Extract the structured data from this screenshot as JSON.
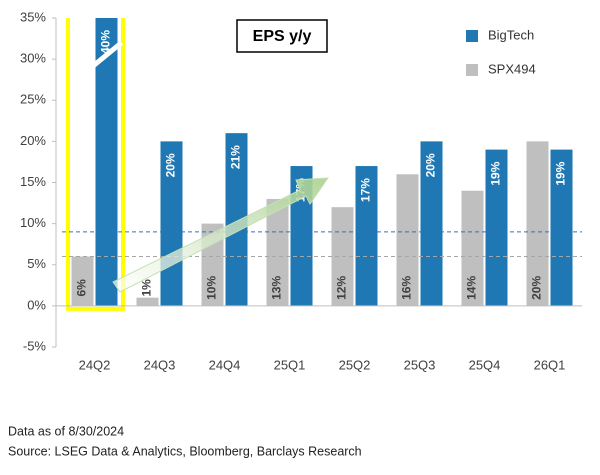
{
  "chart_data": {
    "type": "bar",
    "title": "EPS y/y",
    "categories": [
      "24Q2",
      "24Q3",
      "24Q4",
      "25Q1",
      "25Q2",
      "25Q3",
      "25Q4",
      "26Q1"
    ],
    "series": [
      {
        "name": "SPX494",
        "color": "#bfbfbf",
        "values": [
          6,
          1,
          10,
          13,
          12,
          16,
          14,
          20
        ],
        "value_labels": [
          "6%",
          "1%",
          "10%",
          "13%",
          "12%",
          "16%",
          "14%",
          "20%"
        ]
      },
      {
        "name": "BigTech",
        "color": "#1f77b4",
        "values": [
          40,
          20,
          21,
          17,
          17,
          20,
          19,
          19
        ],
        "value_labels": [
          "40%",
          "20%",
          "21%",
          "17%",
          "17%",
          "20%",
          "19%",
          "19%"
        ]
      }
    ],
    "ylim": [
      -5,
      35
    ],
    "yticks": [
      {
        "value": -5,
        "label": "-5%"
      },
      {
        "value": 0,
        "label": "0%"
      },
      {
        "value": 5,
        "label": "5%"
      },
      {
        "value": 10,
        "label": "10%"
      },
      {
        "value": 15,
        "label": "15%"
      },
      {
        "value": 20,
        "label": "20%"
      },
      {
        "value": 25,
        "label": "25%"
      },
      {
        "value": 30,
        "label": "30%"
      },
      {
        "value": 35,
        "label": "35%"
      }
    ],
    "reference_lines": [
      {
        "value": 9,
        "color": "#2e75b6"
      },
      {
        "value": 6,
        "color": "#a6a6a6"
      }
    ],
    "legend": "upper right",
    "notes": [
      "Data as of 8/30/2024",
      "Source: LSEG Data & Analytics, Bloomberg, Barclays Research"
    ]
  }
}
